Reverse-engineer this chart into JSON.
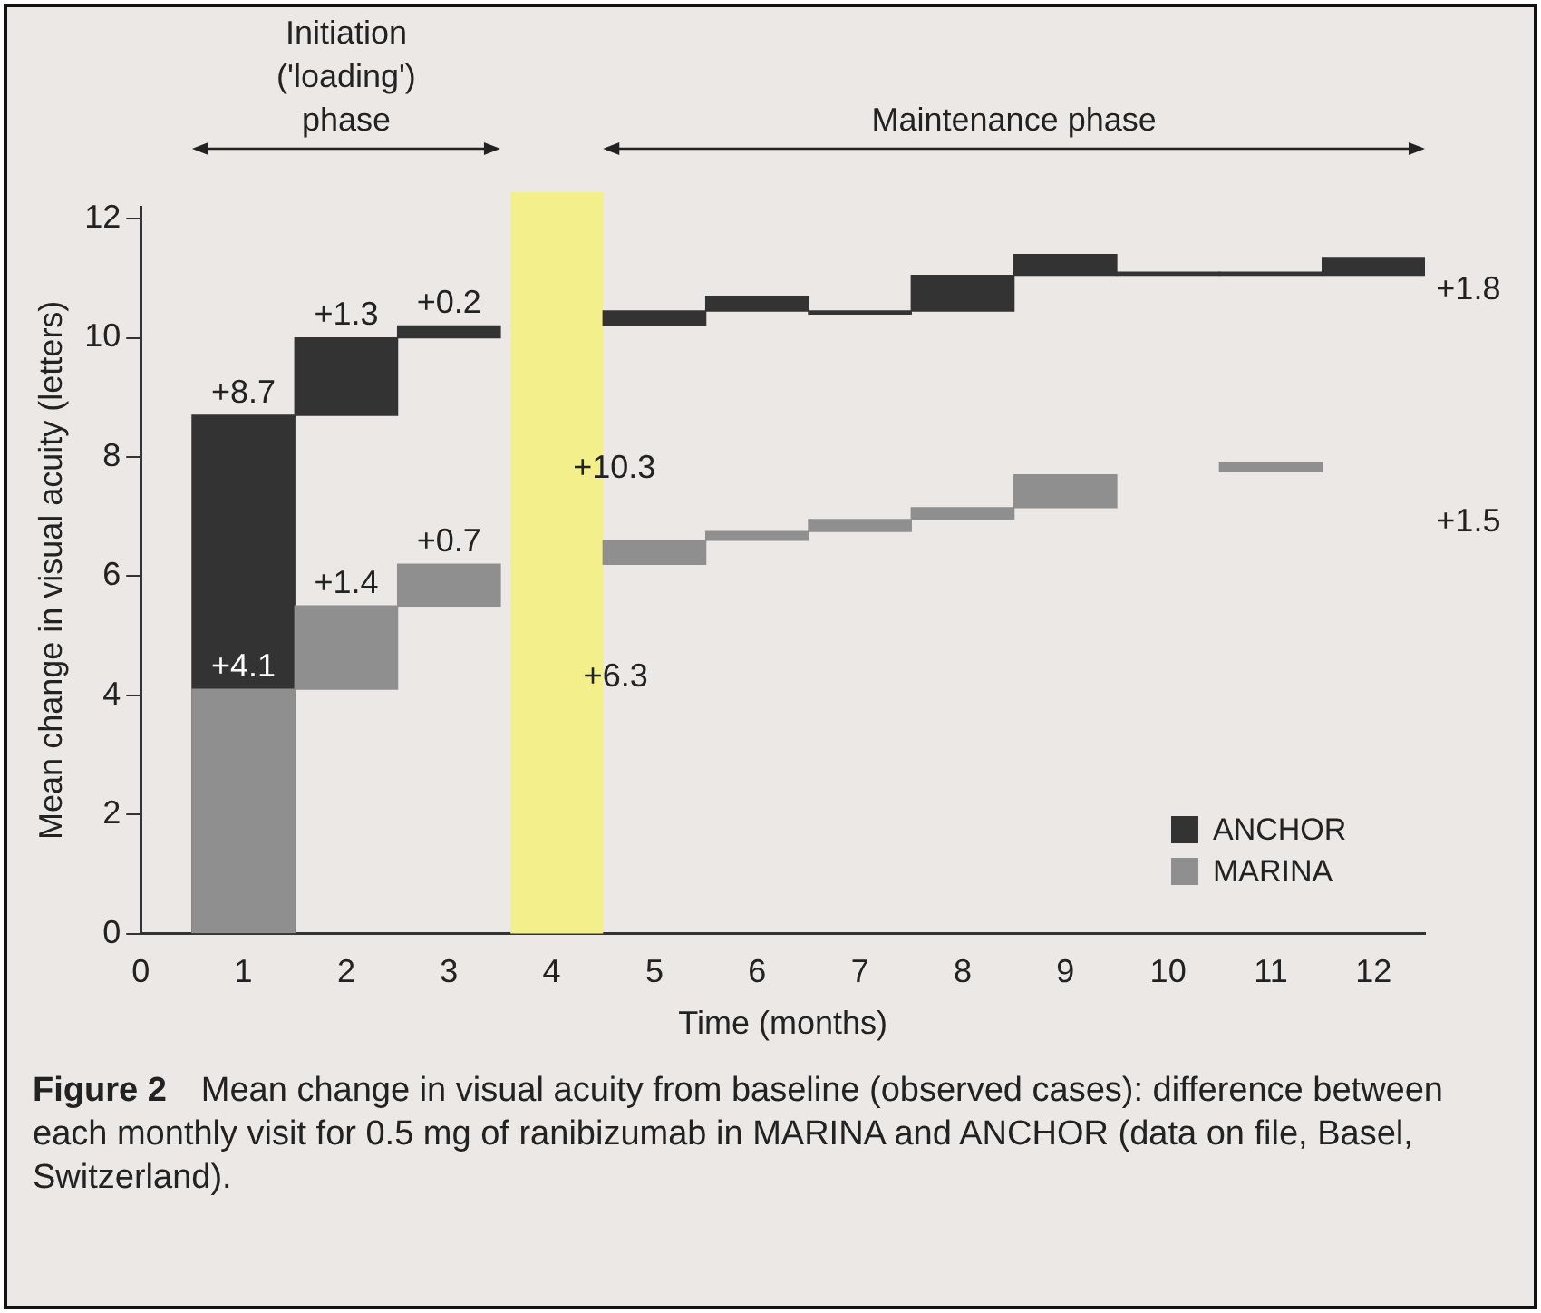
{
  "chart_data": {
    "type": "bar",
    "title": "Figure 2    Mean change in visual acuity from baseline (observed cases): difference between each monthly visit for 0.5 mg of ranibizumab in MARINA and ANCHOR (data on file, Basel, Switzerland).",
    "xlabel": "Time (months)",
    "ylabel": "Mean change in visual acuity (letters)",
    "x": [
      1,
      2,
      3,
      4,
      5,
      6,
      7,
      8,
      9,
      10,
      11,
      12
    ],
    "series": [
      {
        "name": "ANCHOR",
        "color": "#333333",
        "base": [
          0,
          8.7,
          10.0,
          null,
          10.2,
          10.45,
          10.4,
          10.45,
          11.05,
          11.05,
          11.05,
          11.05
        ],
        "values": [
          8.7,
          1.3,
          0.2,
          null,
          0.25,
          0.25,
          0.05,
          0.6,
          0.35,
          0.05,
          0.05,
          0.3
        ],
        "value_labels": [
          "+8.7",
          "+1.3",
          "+0.2",
          null,
          null,
          null,
          null,
          null,
          null,
          null,
          null,
          null
        ]
      },
      {
        "name": "MARINA",
        "color": "#8f8f8f",
        "base": [
          0,
          4.1,
          5.5,
          null,
          6.2,
          6.6,
          6.75,
          6.95,
          7.15,
          null,
          7.75,
          null
        ],
        "values": [
          4.1,
          1.4,
          0.7,
          null,
          0.4,
          0.15,
          0.2,
          0.2,
          0.55,
          null,
          0.15,
          null
        ],
        "value_labels": [
          "+4.1",
          "+1.4",
          "+0.7",
          null,
          null,
          null,
          null,
          null,
          null,
          null,
          null,
          null
        ]
      }
    ],
    "xlim": [
      0,
      12.5
    ],
    "xticks": [
      0,
      1,
      2,
      3,
      4,
      5,
      6,
      7,
      8,
      9,
      10,
      11,
      12
    ],
    "ylim": [
      0,
      12.2
    ],
    "yticks": [
      0,
      2,
      4,
      6,
      8,
      10,
      12
    ],
    "bands": [
      {
        "axis": "x",
        "from": 3.6,
        "to": 4.5,
        "color": "#f3ef8a"
      }
    ],
    "annotations": [
      "Initiation\n('loading')\nphase",
      "Maintenance phase",
      "+10.3",
      "+6.3",
      "+1.8",
      "+1.5"
    ],
    "grid": false,
    "legend": "bottom right"
  }
}
